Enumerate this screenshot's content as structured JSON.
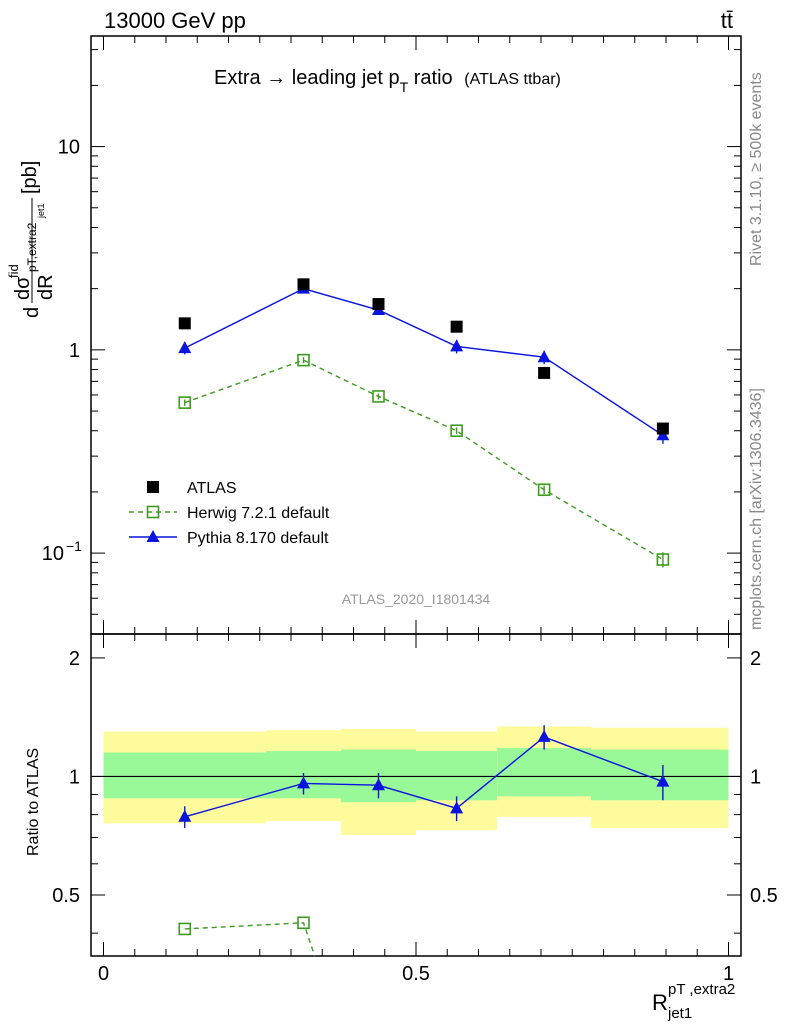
{
  "header": {
    "left": "13000 GeV pp",
    "right": "tt̄"
  },
  "chart_data": {
    "type": "scatter",
    "title_main": "Extra → leading jet p",
    "title_sub": "T",
    "title_tail": " ratio",
    "title_small": "(ATLAS ttbar)",
    "watermark": "ATLAS_2020_I1801434",
    "side_text_top": "Rivet 3.1.10, ≥ 500k events",
    "side_text_bottom": "mcplots.cern.ch [arXiv:1306.3436]",
    "ylabel_main": "dσfid / dR pT,extra2 jet1 [pb]",
    "ylabel_ratio": "Ratio to ATLAS",
    "xlabel": "R",
    "xlabel_sup": "pT ,extra2",
    "xlabel_sub": "jet1",
    "x_range": [
      -0.02,
      1.02
    ],
    "y_range_main": [
      0.04,
      35
    ],
    "y_scale_main": "log",
    "y_range_ratio": [
      0.35,
      2.3
    ],
    "y_scale_ratio": "log",
    "x_ticks": [
      {
        "v": 0,
        "label": "0"
      },
      {
        "v": 0.5,
        "label": "0.5"
      },
      {
        "v": 1,
        "label": "1"
      }
    ],
    "y_ticks_main": [
      {
        "v": 0.1,
        "base": "10",
        "exp": "−1"
      },
      {
        "v": 1,
        "base": "1",
        "exp": ""
      },
      {
        "v": 10,
        "base": "10",
        "exp": ""
      }
    ],
    "y_ticks_ratio": [
      {
        "v": 0.5,
        "label": "0.5"
      },
      {
        "v": 1,
        "label": "1"
      },
      {
        "v": 2,
        "label": "2"
      }
    ],
    "legend_position": "lower-left",
    "bins": [
      {
        "lo": 0.0,
        "hi": 0.26,
        "x": 0.13
      },
      {
        "lo": 0.26,
        "hi": 0.38,
        "x": 0.32
      },
      {
        "lo": 0.38,
        "hi": 0.5,
        "x": 0.44
      },
      {
        "lo": 0.5,
        "hi": 0.63,
        "x": 0.565
      },
      {
        "lo": 0.63,
        "hi": 0.78,
        "x": 0.705
      },
      {
        "lo": 0.78,
        "hi": 1.0,
        "x": 0.895
      }
    ],
    "series": [
      {
        "name": "ATLAS",
        "color": "#000000",
        "marker": "filled-square",
        "values": [
          1.35,
          2.1,
          1.68,
          1.3,
          0.77,
          0.41
        ]
      },
      {
        "name": "Herwig 7.2.1 default",
        "color": "#3c9b1e",
        "marker": "open-square",
        "line": "dashed",
        "values": [
          0.55,
          0.89,
          0.59,
          0.4,
          0.205,
          0.093
        ],
        "errors": [
          0.02,
          0.03,
          0.02,
          0.015,
          0.01,
          0.008
        ],
        "ratio": [
          0.41,
          0.425,
          null,
          null,
          null,
          null
        ]
      },
      {
        "name": "Pythia 8.170 default",
        "color": "#0a14dc",
        "marker": "filled-triangle",
        "line": "solid",
        "values": [
          1.02,
          2.0,
          1.57,
          1.04,
          0.92,
          0.38
        ],
        "errors": [
          0.07,
          0.08,
          0.08,
          0.08,
          0.07,
          0.035
        ],
        "ratio": [
          0.79,
          0.96,
          0.95,
          0.83,
          1.26,
          0.97
        ],
        "ratio_errors": [
          0.05,
          0.06,
          0.07,
          0.06,
          0.09,
          0.1
        ]
      }
    ],
    "bands": {
      "inner_color": "#99f999",
      "outer_color": "#fefb9c",
      "inner": [
        [
          0.88,
          1.15
        ],
        [
          0.88,
          1.16
        ],
        [
          0.86,
          1.17
        ],
        [
          0.87,
          1.16
        ],
        [
          0.89,
          1.18
        ],
        [
          0.87,
          1.17
        ]
      ],
      "outer": [
        [
          0.76,
          1.3
        ],
        [
          0.77,
          1.31
        ],
        [
          0.71,
          1.32
        ],
        [
          0.73,
          1.3
        ],
        [
          0.79,
          1.34
        ],
        [
          0.74,
          1.33
        ]
      ]
    }
  }
}
